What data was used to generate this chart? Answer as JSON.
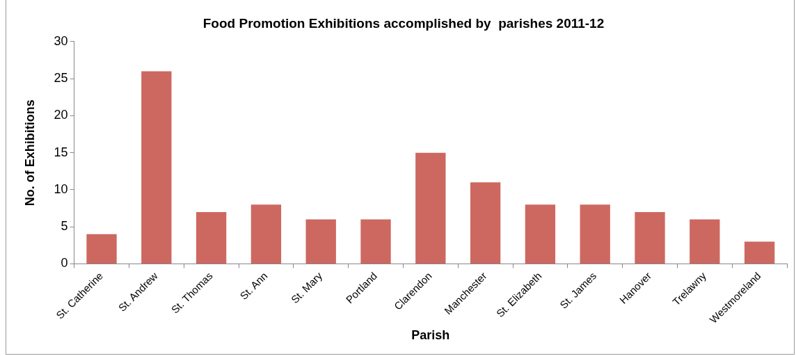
{
  "chart_data": {
    "type": "bar",
    "title": "Food Promotion Exhibitions accomplished by  parishes 2011-12",
    "xlabel": "Parish",
    "ylabel": "No. of Exhibitions",
    "categories": [
      "St. Catherine",
      "St. Andrew",
      "St. Thomas",
      "St. Ann",
      "St. Mary",
      "Portland",
      "Clarendon",
      "Manchester",
      "St. Elizabeth",
      "St. James",
      "Hanover",
      "Trelawny",
      "Westmoreland"
    ],
    "values": [
      4,
      26,
      7,
      8,
      6,
      6,
      15,
      11,
      8,
      8,
      7,
      6,
      3
    ],
    "color": "#cd6861",
    "ylim": [
      0,
      30
    ],
    "yticks": [
      0,
      5,
      10,
      15,
      20,
      25,
      30
    ],
    "grid": false,
    "legend": false
  }
}
